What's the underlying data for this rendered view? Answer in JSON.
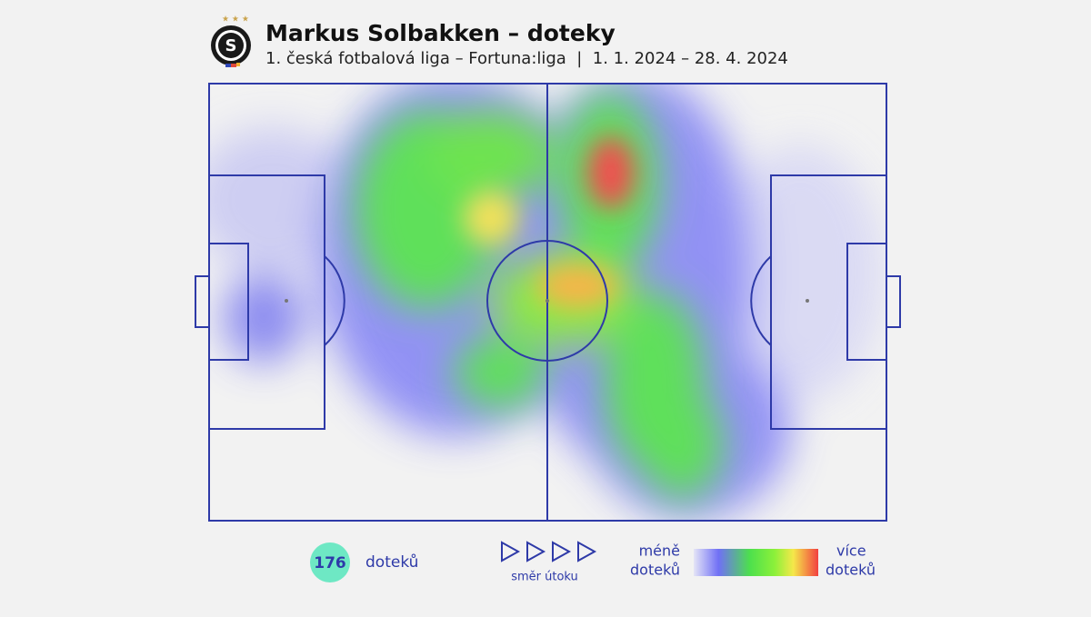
{
  "header": {
    "title": "Markus Solbakken – doteky",
    "subtitle": "1. česká fotbalová liga – Fortuna:liga  |  1. 1. 2024 – 28. 4. 2024",
    "logo": "S"
  },
  "stats": {
    "count": "176",
    "label": "doteků"
  },
  "direction": {
    "label": "směr útoku"
  },
  "legend": {
    "low": [
      "méně",
      "doteků"
    ],
    "high": [
      "více",
      "doteků"
    ]
  }
}
